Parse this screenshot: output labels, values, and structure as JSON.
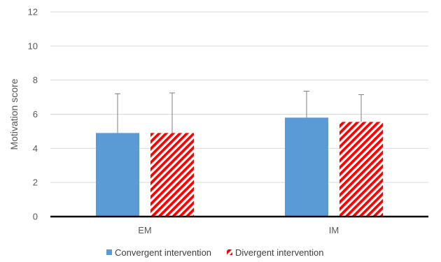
{
  "chart_data": {
    "type": "bar",
    "title": "",
    "xlabel": "",
    "ylabel": "Motivation score",
    "ylim": [
      0,
      12
    ],
    "yticks": [
      0,
      2,
      4,
      6,
      8,
      10,
      12
    ],
    "grid": true,
    "legend_position": "bottom",
    "categories": [
      "EM",
      "IM"
    ],
    "series": [
      {
        "name": "Convergent intervention",
        "values": [
          4.9,
          5.8
        ],
        "error": [
          2.3,
          1.55
        ],
        "color": "#5B9BD5",
        "fill": "solid"
      },
      {
        "name": "Divergent intervention",
        "values": [
          4.9,
          5.55
        ],
        "error": [
          2.35,
          1.6
        ],
        "color": "#FF0000",
        "fill": "diagonal-stripes"
      }
    ]
  }
}
